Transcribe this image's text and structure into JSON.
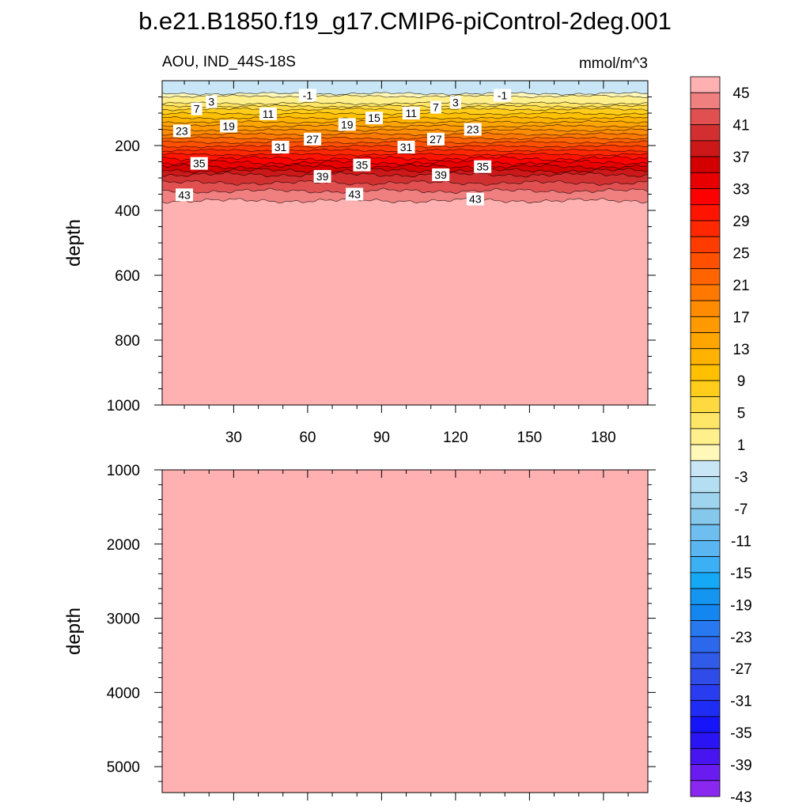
{
  "title": "b.e21.B1850.f19_g17.CMIP6-piControl-2deg.001",
  "subtitle_left": "AOU, IND_44S-18S",
  "subtitle_right": "mmol/m^3",
  "chart_data": [
    {
      "type": "heatmap",
      "panel": "upper",
      "ylabel": "depth",
      "xlim": [
        1,
        198
      ],
      "ylim": [
        1000,
        0
      ],
      "x_ticks": [
        30,
        60,
        90,
        120,
        150,
        180
      ],
      "y_ticks": [
        200,
        400,
        600,
        800,
        1000
      ],
      "levels": [
        -1,
        1,
        3,
        5,
        7,
        9,
        11,
        13,
        15,
        17,
        19,
        21,
        23,
        25,
        27,
        29,
        31,
        33,
        35,
        37,
        39,
        41,
        43,
        45
      ],
      "surface_value": -2,
      "deep_value": 46,
      "level_depths_approx": {
        "-1": 40,
        "1": 48,
        "3": 70,
        "7": 88,
        "11": 115,
        "15": 140,
        "19": 165,
        "23": 190,
        "27": 215,
        "31": 240,
        "35": 265,
        "39": 290,
        "43": 340,
        "45": 370
      },
      "contour_labels": [
        {
          "value": "-1",
          "x": 60,
          "y": 45
        },
        {
          "value": "-1",
          "x": 139,
          "y": 45
        },
        {
          "value": "3",
          "x": 21,
          "y": 65
        },
        {
          "value": "3",
          "x": 120,
          "y": 67
        },
        {
          "value": "7",
          "x": 15,
          "y": 87
        },
        {
          "value": "7",
          "x": 112,
          "y": 82
        },
        {
          "value": "11",
          "x": 44,
          "y": 102
        },
        {
          "value": "11",
          "x": 102,
          "y": 100
        },
        {
          "value": "15",
          "x": 87,
          "y": 115
        },
        {
          "value": "19",
          "x": 28,
          "y": 140
        },
        {
          "value": "19",
          "x": 76,
          "y": 135
        },
        {
          "value": "23",
          "x": 9,
          "y": 155
        },
        {
          "value": "23",
          "x": 127,
          "y": 150
        },
        {
          "value": "27",
          "x": 62,
          "y": 180
        },
        {
          "value": "27",
          "x": 112,
          "y": 180
        },
        {
          "value": "31",
          "x": 49,
          "y": 205
        },
        {
          "value": "31",
          "x": 100,
          "y": 205
        },
        {
          "value": "35",
          "x": 16,
          "y": 255
        },
        {
          "value": "35",
          "x": 82,
          "y": 260
        },
        {
          "value": "35",
          "x": 131,
          "y": 265
        },
        {
          "value": "39",
          "x": 66,
          "y": 295
        },
        {
          "value": "39",
          "x": 114,
          "y": 290
        },
        {
          "value": "43",
          "x": 10,
          "y": 352
        },
        {
          "value": "43",
          "x": 79,
          "y": 350
        },
        {
          "value": "43",
          "x": 128,
          "y": 365
        }
      ]
    },
    {
      "type": "heatmap",
      "panel": "lower",
      "ylabel": "depth",
      "xlim": [
        1,
        198
      ],
      "ylim": [
        5350,
        1000
      ],
      "y_ticks": [
        1000,
        2000,
        3000,
        4000,
        5000
      ],
      "fill_value": 46
    }
  ],
  "colorbar": {
    "labels": [
      "45",
      "41",
      "37",
      "33",
      "29",
      "25",
      "21",
      "17",
      "13",
      "9",
      "5",
      "1",
      "-3",
      "-7",
      "-11",
      "-15",
      "-19",
      "-23",
      "-27",
      "-31",
      "-35",
      "-39",
      "-43"
    ],
    "colors_top_to_bottom": [
      "#ffb0b0",
      "#f08080",
      "#e05050",
      "#d23030",
      "#cc1818",
      "#d40000",
      "#e80000",
      "#ff0000",
      "#ff1400",
      "#ff2800",
      "#ff3c00",
      "#ff5000",
      "#ff6400",
      "#ff7800",
      "#ff8c00",
      "#ff9900",
      "#ffa500",
      "#ffb300",
      "#ffc000",
      "#ffcd1a",
      "#ffd940",
      "#ffe666",
      "#fff08c",
      "#fff8b8",
      "#c8e6f5",
      "#b4def2",
      "#9fd4ee",
      "#86c8ec",
      "#6ebef0",
      "#5ab6f0",
      "#3cb0f5",
      "#14a8f5",
      "#1496f0",
      "#1486f0",
      "#2878f0",
      "#2c68ec",
      "#305ae8",
      "#304ce8",
      "#2a3cf0",
      "#1e2cf4",
      "#1614f8",
      "#2a14f4",
      "#4814f0",
      "#6a1cf0",
      "#8a28f0"
    ]
  }
}
